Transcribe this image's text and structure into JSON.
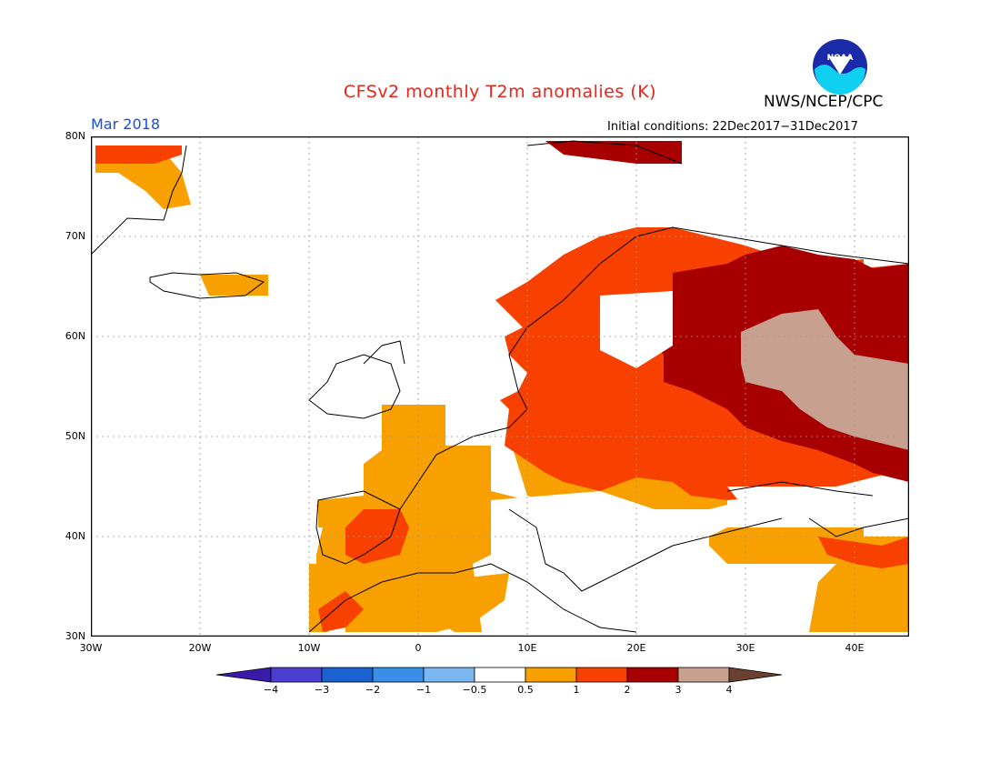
{
  "title": "CFSv2 monthly T2m anomalies (K)",
  "org": "NWS/NCEP/CPC",
  "logo_text": "NOAA",
  "month": "Mar 2018",
  "initial_conditions": "Initial conditions: 22Dec2017−31Dec2017",
  "lat_labels": [
    "80N",
    "70N",
    "60N",
    "50N",
    "40N",
    "30N"
  ],
  "lon_labels": [
    "30W",
    "20W",
    "10W",
    "0",
    "10E",
    "20E",
    "30E",
    "40E"
  ],
  "colorbar": {
    "labels": [
      "−4",
      "−3",
      "−2",
      "−1",
      "−0.5",
      "0.5",
      "1",
      "2",
      "3",
      "4"
    ],
    "colors": [
      "#3a1aa8",
      "#4a3fd0",
      "#1a62d0",
      "#3a8ee8",
      "#7ab6f0",
      "#ffffff",
      "#f8a000",
      "#f84000",
      "#a80000",
      "#c8a090",
      "#6a4030"
    ]
  }
}
